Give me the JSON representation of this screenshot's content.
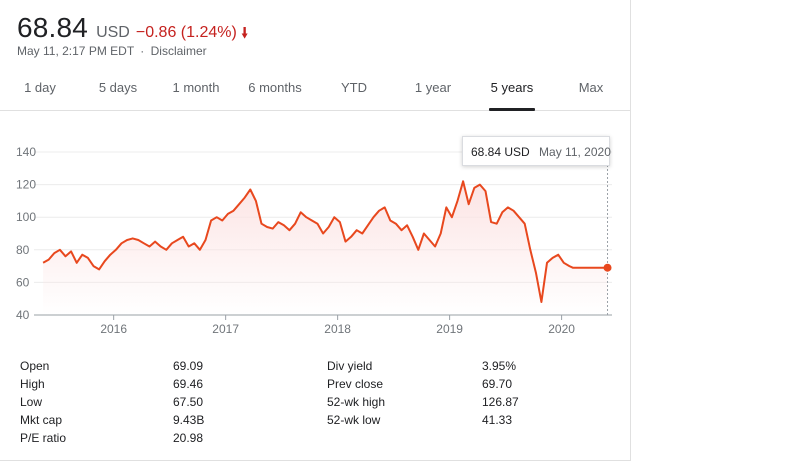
{
  "quote": {
    "price": "68.84",
    "currency": "USD",
    "change": "−0.86 (1.24%)",
    "direction_icon": "arrow-down-icon",
    "timestamp": "May 11, 2:17 PM EDT",
    "separator": "·",
    "disclaimer": "Disclaimer",
    "negative_color": "#c5221f"
  },
  "tabs": [
    {
      "label": "1 day"
    },
    {
      "label": "5 days"
    },
    {
      "label": "1 month"
    },
    {
      "label": "6 months"
    },
    {
      "label": "YTD"
    },
    {
      "label": "1 year"
    },
    {
      "label": "5 years",
      "active": true
    },
    {
      "label": "Max"
    }
  ],
  "tooltip": {
    "price": "68.84 USD",
    "date": "May 11, 2020"
  },
  "chart_data": {
    "type": "area",
    "line_color": "#e8481e",
    "fill_color": "#fce4e4",
    "ylim": [
      40,
      140
    ],
    "yticks": [
      40,
      60,
      80,
      100,
      120,
      140
    ],
    "xlim": [
      2015.36,
      2020.45
    ],
    "xticks": [
      {
        "value": 2016,
        "label": "2016"
      },
      {
        "value": 2017,
        "label": "2017"
      },
      {
        "value": 2018,
        "label": "2018"
      },
      {
        "value": 2019,
        "label": "2019"
      },
      {
        "value": 2020,
        "label": "2020"
      }
    ],
    "grid": true,
    "series": [
      {
        "x": [
          2015.37,
          2015.42,
          2015.47,
          2015.52,
          2015.57,
          2015.62,
          2015.67,
          2015.72,
          2015.77,
          2015.82,
          2015.87,
          2015.92,
          2015.97,
          2016.02,
          2016.07,
          2016.12,
          2016.17,
          2016.22,
          2016.27,
          2016.32,
          2016.37,
          2016.42,
          2016.47,
          2016.52,
          2016.57,
          2016.62,
          2016.67,
          2016.72,
          2016.77,
          2016.82,
          2016.87,
          2016.92,
          2016.97,
          2017.02,
          2017.07,
          2017.12,
          2017.17,
          2017.22,
          2017.27,
          2017.32,
          2017.37,
          2017.42,
          2017.47,
          2017.52,
          2017.57,
          2017.62,
          2017.67,
          2017.72,
          2017.77,
          2017.82,
          2017.87,
          2017.92,
          2017.97,
          2018.02,
          2018.07,
          2018.12,
          2018.17,
          2018.22,
          2018.27,
          2018.32,
          2018.37,
          2018.42,
          2018.47,
          2018.52,
          2018.57,
          2018.62,
          2018.67,
          2018.72,
          2018.77,
          2018.82,
          2018.87,
          2018.92,
          2018.97,
          2019.02,
          2019.07,
          2019.12,
          2019.17,
          2019.22,
          2019.27,
          2019.32,
          2019.37,
          2019.42,
          2019.47,
          2019.52,
          2019.57,
          2019.62,
          2019.67,
          2019.72,
          2019.77,
          2019.82,
          2019.87,
          2019.92,
          2019.97,
          2020.02,
          2020.07,
          2020.1,
          2020.13,
          2020.16,
          2020.19,
          2020.21,
          2020.23,
          2020.26,
          2020.29,
          2020.32,
          2020.35,
          2020.38,
          2020.41
        ],
        "y": [
          72,
          74,
          78,
          80,
          76,
          79,
          72,
          77,
          75,
          70,
          68,
          73,
          77,
          80,
          84,
          86,
          87,
          86,
          84,
          82,
          85,
          82,
          80,
          84,
          86,
          88,
          82,
          84,
          80,
          86,
          98,
          100,
          98,
          102,
          104,
          108,
          112,
          117,
          110,
          96,
          94,
          93,
          97,
          95,
          92,
          96,
          103,
          100,
          98,
          96,
          90,
          94,
          100,
          97,
          85,
          88,
          92,
          90,
          95,
          100,
          104,
          106,
          98,
          96,
          92,
          95,
          88,
          80,
          90,
          86,
          82,
          90,
          106,
          100,
          110,
          122,
          108,
          118,
          120,
          116,
          97,
          96,
          103,
          106,
          104,
          100,
          96,
          80,
          66,
          48,
          72,
          75,
          77,
          72,
          70,
          69,
          69,
          69,
          69,
          69,
          69,
          69,
          69,
          69,
          69,
          69,
          69
        ]
      }
    ]
  },
  "stats_left": [
    {
      "label": "Open",
      "value": "69.09"
    },
    {
      "label": "High",
      "value": "69.46"
    },
    {
      "label": "Low",
      "value": "67.50"
    },
    {
      "label": "Mkt cap",
      "value": "9.43B"
    },
    {
      "label": "P/E ratio",
      "value": "20.98"
    }
  ],
  "stats_right": [
    {
      "label": "Div yield",
      "value": "3.95%"
    },
    {
      "label": "Prev close",
      "value": "69.70"
    },
    {
      "label": "52-wk high",
      "value": "126.87"
    },
    {
      "label": "52-wk low",
      "value": "41.33"
    }
  ]
}
